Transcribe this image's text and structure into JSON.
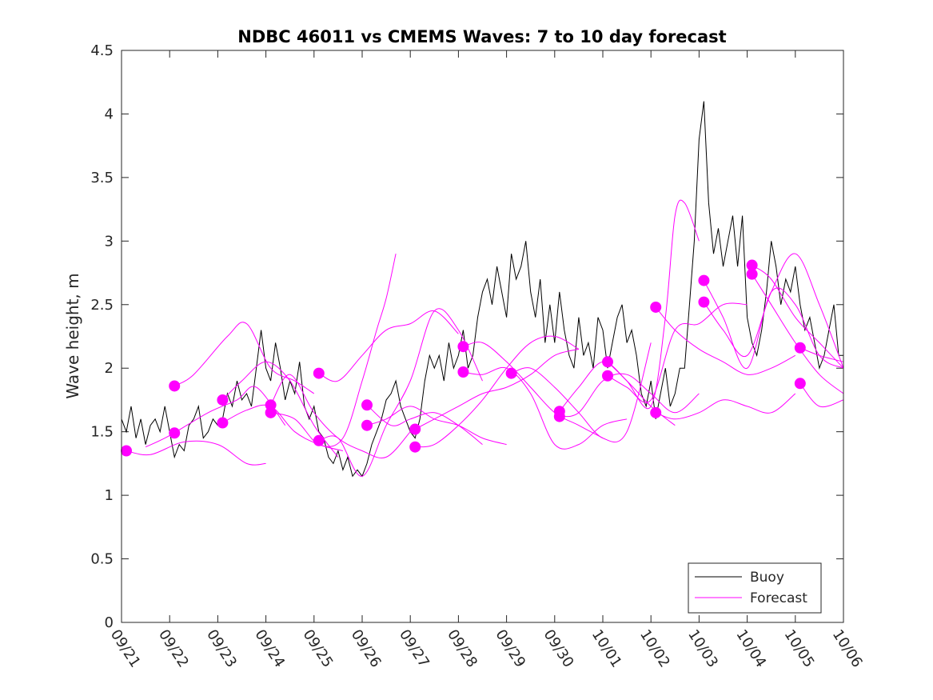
{
  "chart_data": {
    "type": "line",
    "title": "NDBC 46011 vs CMEMS Waves: 7 to 10 day forecast",
    "xlabel": "",
    "ylabel": "Wave height, m",
    "x_unit": "days since 09/21 00:00",
    "xlim": [
      0,
      15
    ],
    "ylim": [
      0,
      4.5
    ],
    "yticks": [
      0,
      0.5,
      1,
      1.5,
      2,
      2.5,
      3,
      3.5,
      4,
      4.5
    ],
    "xtick_labels": [
      "09/21",
      "09/22",
      "09/23",
      "09/24",
      "09/25",
      "09/26",
      "09/27",
      "09/28",
      "09/29",
      "09/30",
      "10/01",
      "10/02",
      "10/03",
      "10/04",
      "10/05",
      "10/06"
    ],
    "legend": {
      "position": "bottom-right",
      "entries": [
        {
          "label": "Buoy",
          "color": "#000000"
        },
        {
          "label": "Forecast",
          "color": "#ff00ff"
        }
      ]
    },
    "buoy": {
      "name": "Buoy",
      "color": "#000000",
      "x": [
        0,
        0.1,
        0.2,
        0.3,
        0.4,
        0.5,
        0.6,
        0.7,
        0.8,
        0.9,
        1.0,
        1.1,
        1.2,
        1.3,
        1.4,
        1.5,
        1.6,
        1.7,
        1.8,
        1.9,
        2.0,
        2.1,
        2.2,
        2.3,
        2.4,
        2.5,
        2.6,
        2.7,
        2.8,
        2.9,
        3.0,
        3.1,
        3.2,
        3.3,
        3.4,
        3.5,
        3.6,
        3.7,
        3.8,
        3.9,
        4.0,
        4.1,
        4.2,
        4.3,
        4.4,
        4.5,
        4.6,
        4.7,
        4.8,
        4.9,
        5.0,
        5.1,
        5.2,
        5.3,
        5.4,
        5.5,
        5.6,
        5.7,
        5.8,
        5.9,
        6.0,
        6.1,
        6.2,
        6.3,
        6.4,
        6.5,
        6.6,
        6.7,
        6.8,
        6.9,
        7.0,
        7.1,
        7.2,
        7.3,
        7.4,
        7.5,
        7.6,
        7.7,
        7.8,
        7.9,
        8.0,
        8.1,
        8.2,
        8.3,
        8.4,
        8.5,
        8.6,
        8.7,
        8.8,
        8.9,
        9.0,
        9.1,
        9.2,
        9.3,
        9.4,
        9.5,
        9.6,
        9.7,
        9.8,
        9.9,
        10.0,
        10.1,
        10.2,
        10.3,
        10.4,
        10.5,
        10.6,
        10.7,
        10.8,
        10.9,
        11.0,
        11.1,
        11.2,
        11.3,
        11.4,
        11.5,
        11.6,
        11.7,
        11.8,
        11.9,
        12.0,
        12.1,
        12.2,
        12.3,
        12.4,
        12.5,
        12.6,
        12.7,
        12.8,
        12.9,
        13.0,
        13.1,
        13.2,
        13.3,
        13.4,
        13.5,
        13.6,
        13.7,
        13.8,
        13.9,
        14.0,
        14.1,
        14.2,
        14.3,
        14.4,
        14.5,
        14.6,
        14.7,
        14.8,
        14.9,
        15.0
      ],
      "y": [
        1.6,
        1.5,
        1.7,
        1.45,
        1.6,
        1.4,
        1.55,
        1.6,
        1.5,
        1.7,
        1.5,
        1.3,
        1.4,
        1.35,
        1.55,
        1.6,
        1.7,
        1.45,
        1.5,
        1.6,
        1.55,
        1.6,
        1.8,
        1.7,
        1.9,
        1.75,
        1.8,
        1.7,
        2.0,
        2.3,
        2.0,
        1.9,
        2.2,
        2.0,
        1.75,
        1.9,
        1.8,
        2.05,
        1.7,
        1.6,
        1.7,
        1.5,
        1.45,
        1.3,
        1.25,
        1.35,
        1.2,
        1.3,
        1.15,
        1.2,
        1.15,
        1.25,
        1.4,
        1.5,
        1.6,
        1.75,
        1.8,
        1.9,
        1.7,
        1.6,
        1.5,
        1.45,
        1.6,
        1.9,
        2.1,
        2.0,
        2.1,
        1.9,
        2.2,
        2.0,
        2.1,
        2.3,
        2.0,
        2.1,
        2.4,
        2.6,
        2.7,
        2.5,
        2.8,
        2.6,
        2.4,
        2.9,
        2.7,
        2.8,
        3.0,
        2.6,
        2.4,
        2.7,
        2.2,
        2.5,
        2.2,
        2.6,
        2.3,
        2.1,
        2.0,
        2.4,
        2.1,
        2.2,
        2.0,
        2.4,
        2.3,
        2.0,
        2.2,
        2.4,
        2.5,
        2.2,
        2.3,
        2.1,
        1.8,
        1.7,
        1.9,
        1.6,
        1.8,
        2.0,
        1.7,
        1.8,
        2.0,
        2.0,
        2.5,
        3.0,
        3.8,
        4.1,
        3.3,
        2.9,
        3.1,
        2.8,
        3.0,
        3.2,
        2.8,
        3.2,
        2.4,
        2.2,
        2.1,
        2.3,
        2.6,
        3.0,
        2.8,
        2.5,
        2.7,
        2.6,
        2.8,
        2.5,
        2.3,
        2.4,
        2.2,
        2.0,
        2.1,
        2.3,
        2.5,
        2.1,
        2.1
      ]
    },
    "forecast_runs": [
      {
        "x": [
          0.1,
          0.6,
          1.3,
          2.0,
          2.6,
          3.0
        ],
        "y": [
          1.35,
          1.32,
          1.42,
          1.4,
          1.25,
          1.25
        ]
      },
      {
        "x": [
          0.5,
          1.0,
          1.8,
          2.4,
          2.8,
          3.4
        ],
        "y": [
          1.38,
          1.47,
          1.65,
          1.75,
          1.85,
          1.55
        ]
      },
      {
        "x": [
          1.1,
          1.5,
          2.2,
          2.6,
          3.1,
          3.6,
          4.0
        ],
        "y": [
          1.86,
          1.95,
          2.25,
          2.35,
          2.0,
          1.9,
          1.8
        ]
      },
      {
        "x": [
          2.1,
          2.5,
          3.0,
          3.5,
          4.0,
          4.5
        ],
        "y": [
          1.75,
          1.9,
          2.05,
          1.9,
          1.55,
          1.3
        ]
      },
      {
        "x": [
          2.1,
          2.6,
          3.1,
          3.6,
          4.1,
          4.6
        ],
        "y": [
          1.57,
          1.67,
          1.7,
          1.5,
          1.4,
          1.35
        ]
      },
      {
        "x": [
          3.1,
          3.5,
          4.0,
          4.5,
          5.0,
          5.5,
          6.0
        ],
        "y": [
          1.71,
          1.95,
          1.65,
          1.45,
          1.35,
          1.3,
          1.5
        ]
      },
      {
        "x": [
          3.1,
          3.6,
          4.1,
          4.6,
          5.0,
          5.3,
          5.5,
          5.7
        ],
        "y": [
          1.65,
          1.6,
          1.4,
          1.45,
          1.9,
          2.3,
          2.55,
          2.9
        ]
      },
      {
        "x": [
          4.1,
          4.5,
          5.0,
          5.5,
          6.0,
          6.5,
          7.0
        ],
        "y": [
          1.96,
          1.9,
          2.1,
          2.3,
          2.35,
          2.45,
          2.27
        ]
      },
      {
        "x": [
          4.1,
          4.5,
          5.0,
          5.5,
          6.0,
          6.5,
          7.0,
          7.5
        ],
        "y": [
          1.43,
          1.45,
          1.15,
          1.55,
          1.9,
          2.45,
          2.3,
          1.9
        ]
      },
      {
        "x": [
          5.1,
          5.6,
          6.0,
          6.5,
          7.0,
          7.5
        ],
        "y": [
          1.71,
          1.55,
          1.6,
          1.65,
          1.55,
          1.4
        ]
      },
      {
        "x": [
          5.1,
          5.5,
          6.0,
          6.5,
          7.0,
          7.5,
          8.0
        ],
        "y": [
          1.55,
          1.6,
          1.7,
          1.6,
          1.55,
          1.45,
          1.4
        ]
      },
      {
        "x": [
          6.1,
          6.5,
          7.0,
          7.5,
          8.0,
          8.5,
          9.0,
          9.5
        ],
        "y": [
          1.52,
          1.6,
          1.7,
          1.8,
          1.85,
          1.95,
          2.1,
          2.15
        ]
      },
      {
        "x": [
          6.1,
          6.5,
          7.0,
          7.5,
          8.0,
          8.5,
          9.0,
          9.5
        ],
        "y": [
          1.38,
          1.4,
          1.55,
          1.75,
          2.0,
          2.2,
          2.25,
          2.15
        ]
      },
      {
        "x": [
          7.1,
          7.5,
          8.0,
          8.5,
          9.0,
          9.5,
          10.0
        ],
        "y": [
          2.17,
          2.2,
          2.05,
          1.85,
          1.65,
          1.55,
          1.45
        ]
      },
      {
        "x": [
          7.1,
          7.5,
          8.0,
          8.5,
          9.0,
          9.5,
          10.0,
          10.5
        ],
        "y": [
          1.97,
          1.95,
          2.0,
          1.8,
          1.4,
          1.4,
          1.55,
          1.6
        ]
      },
      {
        "x": [
          8.1,
          8.5,
          9.0,
          9.5,
          10.0,
          10.5,
          11.0
        ],
        "y": [
          1.96,
          2.0,
          1.85,
          1.65,
          1.45,
          1.5,
          2.2
        ]
      },
      {
        "x": [
          9.1,
          9.5,
          10.0,
          10.5,
          11.0,
          11.5
        ],
        "y": [
          1.66,
          1.85,
          2.05,
          1.9,
          1.7,
          1.55
        ]
      },
      {
        "x": [
          9.1,
          9.5,
          10.0,
          10.5,
          11.0,
          11.5,
          12.0
        ],
        "y": [
          1.62,
          1.65,
          1.9,
          1.95,
          1.8,
          1.65,
          1.8
        ]
      },
      {
        "x": [
          10.1,
          10.5,
          11.0,
          11.3,
          11.5,
          11.7,
          12.0
        ],
        "y": [
          2.05,
          1.9,
          1.7,
          2.4,
          3.2,
          3.3,
          3.0
        ]
      },
      {
        "x": [
          10.1,
          10.5,
          11.0,
          11.5,
          12.0,
          12.5,
          13.0
        ],
        "y": [
          1.94,
          1.85,
          1.75,
          2.3,
          2.35,
          2.5,
          2.5
        ]
      },
      {
        "x": [
          11.1,
          11.5,
          12.0,
          12.5,
          13.0,
          13.5,
          14.0
        ],
        "y": [
          2.48,
          2.3,
          2.15,
          2.05,
          1.95,
          2.0,
          2.1
        ]
      },
      {
        "x": [
          11.1,
          11.5,
          12.0,
          12.5,
          13.0,
          13.5,
          14.0
        ],
        "y": [
          1.65,
          1.6,
          1.65,
          1.75,
          1.7,
          1.65,
          1.8
        ]
      },
      {
        "x": [
          12.1,
          12.5,
          13.0,
          13.5,
          14.0,
          14.5,
          15.0
        ],
        "y": [
          2.69,
          2.4,
          2.0,
          2.6,
          2.5,
          2.1,
          2.0
        ]
      },
      {
        "x": [
          12.1,
          12.5,
          13.0,
          13.5,
          14.0,
          14.5,
          15.0
        ],
        "y": [
          2.52,
          2.3,
          2.1,
          2.6,
          2.9,
          2.5,
          2.0
        ]
      },
      {
        "x": [
          13.1,
          13.5,
          14.0,
          14.5,
          15.0
        ],
        "y": [
          2.81,
          2.7,
          2.4,
          2.2,
          2.0
        ]
      },
      {
        "x": [
          13.1,
          13.5,
          14.0,
          14.5,
          15.0
        ],
        "y": [
          2.74,
          2.5,
          2.2,
          1.95,
          1.8
        ]
      },
      {
        "x": [
          14.1,
          14.5,
          15.0
        ],
        "y": [
          2.16,
          2.1,
          2.05
        ]
      },
      {
        "x": [
          14.1,
          14.5,
          15.0
        ],
        "y": [
          1.88,
          1.7,
          1.75
        ]
      }
    ],
    "forecast_points": {
      "color": "#ff00ff",
      "x": [
        0.1,
        1.1,
        1.1,
        2.1,
        2.1,
        3.1,
        3.1,
        4.1,
        4.1,
        5.1,
        5.1,
        6.1,
        6.1,
        7.1,
        7.1,
        8.1,
        9.1,
        9.1,
        10.1,
        10.1,
        11.1,
        11.1,
        12.1,
        12.1,
        13.1,
        13.1,
        14.1,
        14.1
      ],
      "y": [
        1.35,
        1.86,
        1.49,
        1.75,
        1.57,
        1.71,
        1.65,
        1.96,
        1.43,
        1.71,
        1.55,
        1.52,
        1.38,
        2.17,
        1.97,
        1.96,
        1.66,
        1.62,
        2.05,
        1.94,
        2.48,
        1.65,
        2.69,
        2.52,
        2.81,
        2.74,
        2.16,
        1.88
      ]
    }
  }
}
